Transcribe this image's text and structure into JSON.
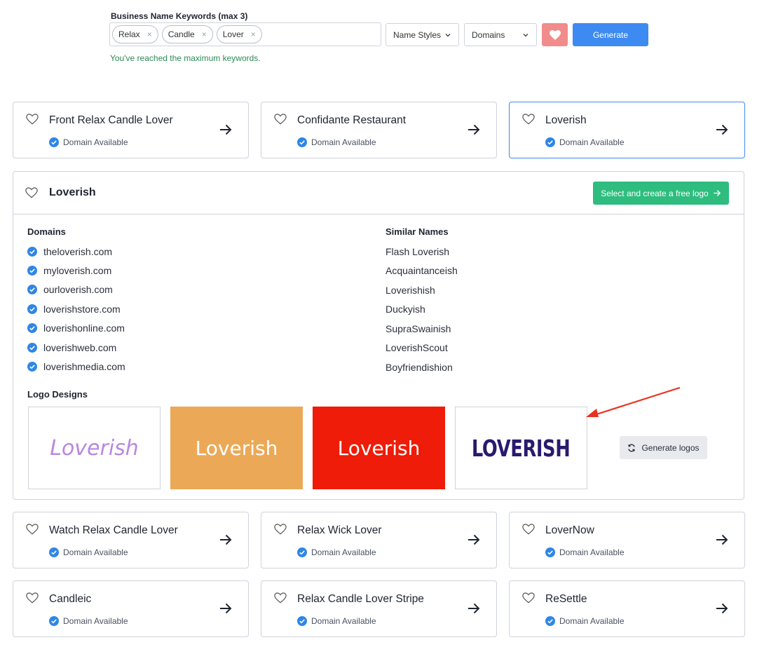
{
  "search": {
    "label": "Business Name Keywords (max 3)",
    "keywords": [
      "Relax",
      "Candle",
      "Lover"
    ],
    "chip_remove": "×",
    "name_styles": "Name Styles",
    "domains": "Domains",
    "generate": "Generate",
    "max_message": "You've reached the maximum keywords."
  },
  "colors": {
    "accent_blue": "#3d8bf2",
    "favorite_red": "#f28b8b",
    "success_green": "#2ebd7e",
    "check_blue": "#2f86e6"
  },
  "availability_label": "Domain Available",
  "top_cards": [
    {
      "name": "Front Relax Candle Lover"
    },
    {
      "name": "Confidante Restaurant"
    },
    {
      "name": "Loverish"
    }
  ],
  "detail": {
    "title": "Loverish",
    "create_logo": "Select and create a free logo",
    "domains_title": "Domains",
    "domains": [
      "theloverish.com",
      "myloverish.com",
      "ourloverish.com",
      "loverishstore.com",
      "loverishonline.com",
      "loverishweb.com",
      "loverishmedia.com"
    ],
    "similar_title": "Similar Names",
    "similar": [
      "Flash Loverish",
      "Acquaintanceish",
      "Loverishish",
      "Duckyish",
      "SupraSwainish",
      "LoverishScout",
      "Boyfriendishion"
    ],
    "logos_title": "Logo Designs",
    "logos": [
      "Loverish",
      "Loverish",
      "Loverish",
      "LOVERISH"
    ],
    "generate_logos": "Generate logos"
  },
  "bottom_cards": [
    {
      "name": "Watch Relax Candle Lover"
    },
    {
      "name": "Relax Wick Lover"
    },
    {
      "name": "LoverNow"
    },
    {
      "name": "Candleic"
    },
    {
      "name": "Relax Candle Lover Stripe"
    },
    {
      "name": "ReSettle"
    }
  ]
}
